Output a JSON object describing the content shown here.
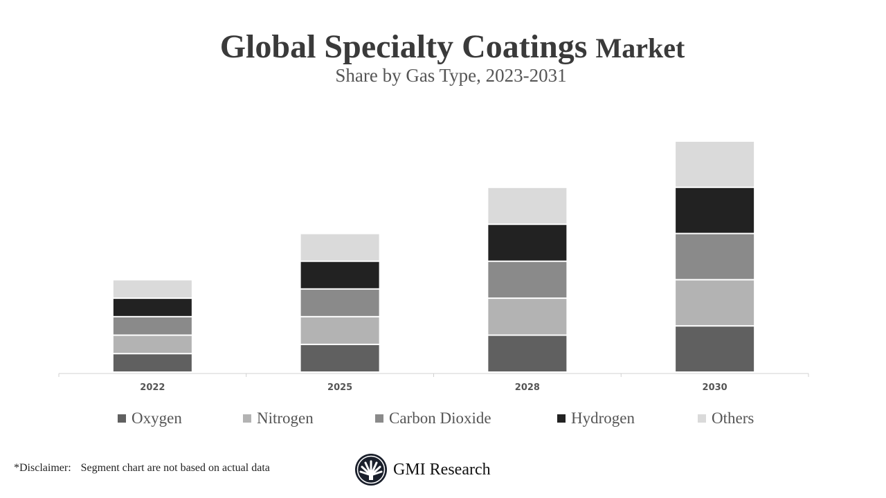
{
  "chart_data": {
    "type": "bar",
    "stacked": true,
    "title": "Global Specialty Coatings",
    "title_suffix": "Market",
    "subtitle": "Share by Gas Type, 2023-2031",
    "categories": [
      "2022",
      "2025",
      "2028",
      "2030"
    ],
    "series": [
      {
        "name": "Oxygen",
        "color": "#606060",
        "values": [
          2,
          3,
          4,
          5
        ]
      },
      {
        "name": "Nitrogen",
        "color": "#b3b3b3",
        "values": [
          2,
          3,
          4,
          5
        ]
      },
      {
        "name": "Carbon Dioxide",
        "color": "#8a8a8a",
        "values": [
          2,
          3,
          4,
          5
        ]
      },
      {
        "name": "Hydrogen",
        "color": "#222222",
        "values": [
          2,
          3,
          4,
          5
        ]
      },
      {
        "name": "Others",
        "color": "#dadada",
        "values": [
          2,
          3,
          4,
          5
        ]
      }
    ],
    "ylim": [
      0,
      25
    ],
    "grid": false,
    "legend": "bottom"
  },
  "footer": {
    "disclaimer_label": "*Disclaimer:",
    "disclaimer_text": "Segment chart are not based on actual data",
    "brand": "GMI Research"
  }
}
